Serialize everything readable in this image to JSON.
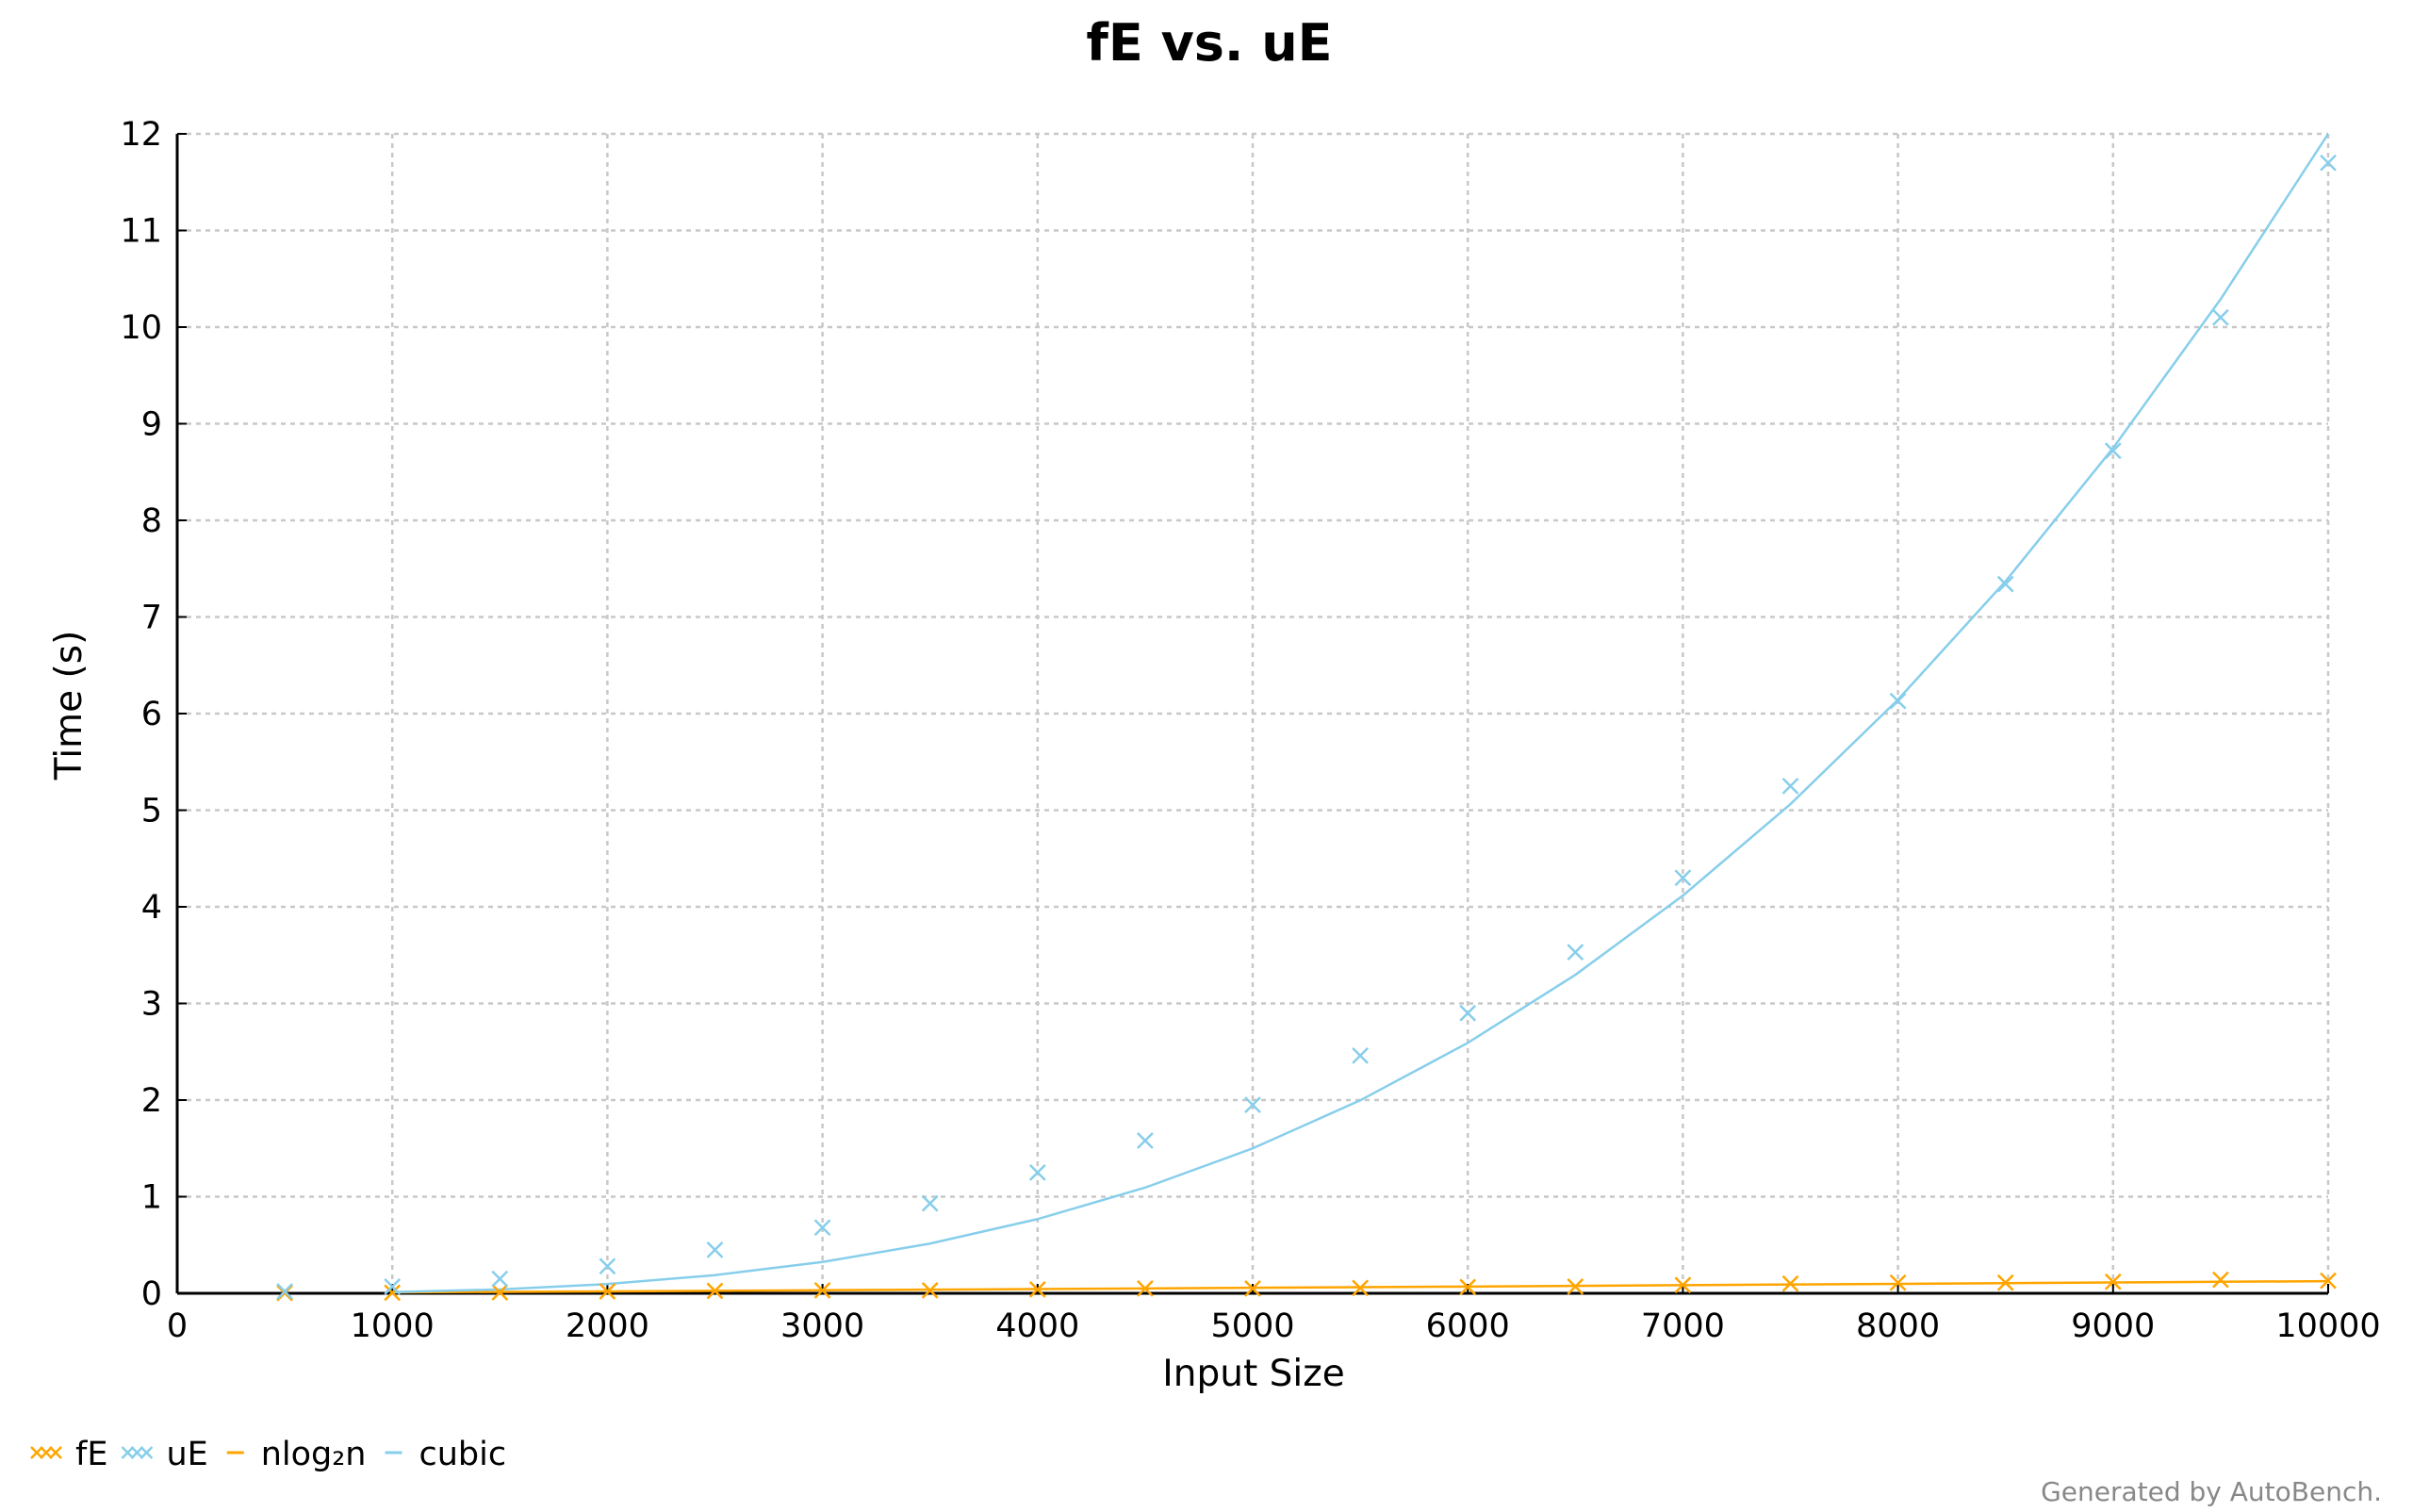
{
  "chart_data": {
    "type": "scatter",
    "title": "fE vs. uE",
    "xlabel": "Input Size",
    "ylabel": "Time (s)",
    "xlim": [
      0,
      10000
    ],
    "ylim": [
      0,
      12
    ],
    "xticks": [
      0,
      1000,
      2000,
      3000,
      4000,
      5000,
      6000,
      7000,
      8000,
      9000,
      10000
    ],
    "yticks": [
      0,
      1,
      2,
      3,
      4,
      5,
      6,
      7,
      8,
      9,
      10,
      11,
      12
    ],
    "grid": true,
    "legend_position": "bottom-left",
    "series": [
      {
        "name": "fE",
        "kind": "scatter",
        "marker": "x",
        "color": "#FFA500",
        "x": [
          500,
          1000,
          1500,
          2000,
          2500,
          3000,
          3500,
          4000,
          4500,
          5000,
          5500,
          6000,
          6500,
          7000,
          7500,
          8000,
          8500,
          9000,
          9500,
          10000
        ],
        "y": [
          0.003,
          0.006,
          0.01,
          0.02,
          0.025,
          0.03,
          0.03,
          0.04,
          0.05,
          0.05,
          0.055,
          0.065,
          0.07,
          0.085,
          0.1,
          0.11,
          0.11,
          0.12,
          0.14,
          0.13
        ]
      },
      {
        "name": "uE",
        "kind": "scatter",
        "marker": "x",
        "color": "#87CEEB",
        "x": [
          500,
          1000,
          1500,
          2000,
          2500,
          3000,
          3500,
          4000,
          4500,
          5000,
          5500,
          6000,
          6500,
          7000,
          7500,
          8000,
          8500,
          9000,
          9500,
          10000
        ],
        "y": [
          0.02,
          0.07,
          0.15,
          0.28,
          0.45,
          0.68,
          0.93,
          1.25,
          1.58,
          1.95,
          2.46,
          2.9,
          3.53,
          4.3,
          5.25,
          6.13,
          7.34,
          8.72,
          10.1,
          11.7
        ]
      },
      {
        "name": "nlog₂n",
        "kind": "line",
        "color": "#FFA500",
        "x": [
          1000,
          1500,
          2000,
          2500,
          3000,
          3500,
          4000,
          4500,
          5000,
          5500,
          6000,
          6500,
          7000,
          7500,
          8000,
          8500,
          9000,
          9500,
          10000
        ],
        "y": [
          0.01,
          0.015,
          0.02,
          0.026,
          0.032,
          0.038,
          0.044,
          0.05,
          0.057,
          0.063,
          0.07,
          0.077,
          0.084,
          0.091,
          0.098,
          0.105,
          0.112,
          0.119,
          0.126
        ]
      },
      {
        "name": "cubic",
        "kind": "line",
        "color": "#87CEEB",
        "x": [
          1000,
          1500,
          2000,
          2500,
          3000,
          3500,
          4000,
          4500,
          5000,
          5500,
          6000,
          6500,
          7000,
          7500,
          8000,
          8500,
          9000,
          9500,
          10000
        ],
        "y": [
          0.012,
          0.04,
          0.096,
          0.188,
          0.324,
          0.515,
          0.768,
          1.094,
          1.5,
          1.997,
          2.592,
          3.296,
          4.116,
          5.063,
          6.144,
          7.369,
          8.748,
          10.289,
          12.0
        ]
      }
    ]
  },
  "footer": {
    "credit": "Generated by AutoBench."
  }
}
